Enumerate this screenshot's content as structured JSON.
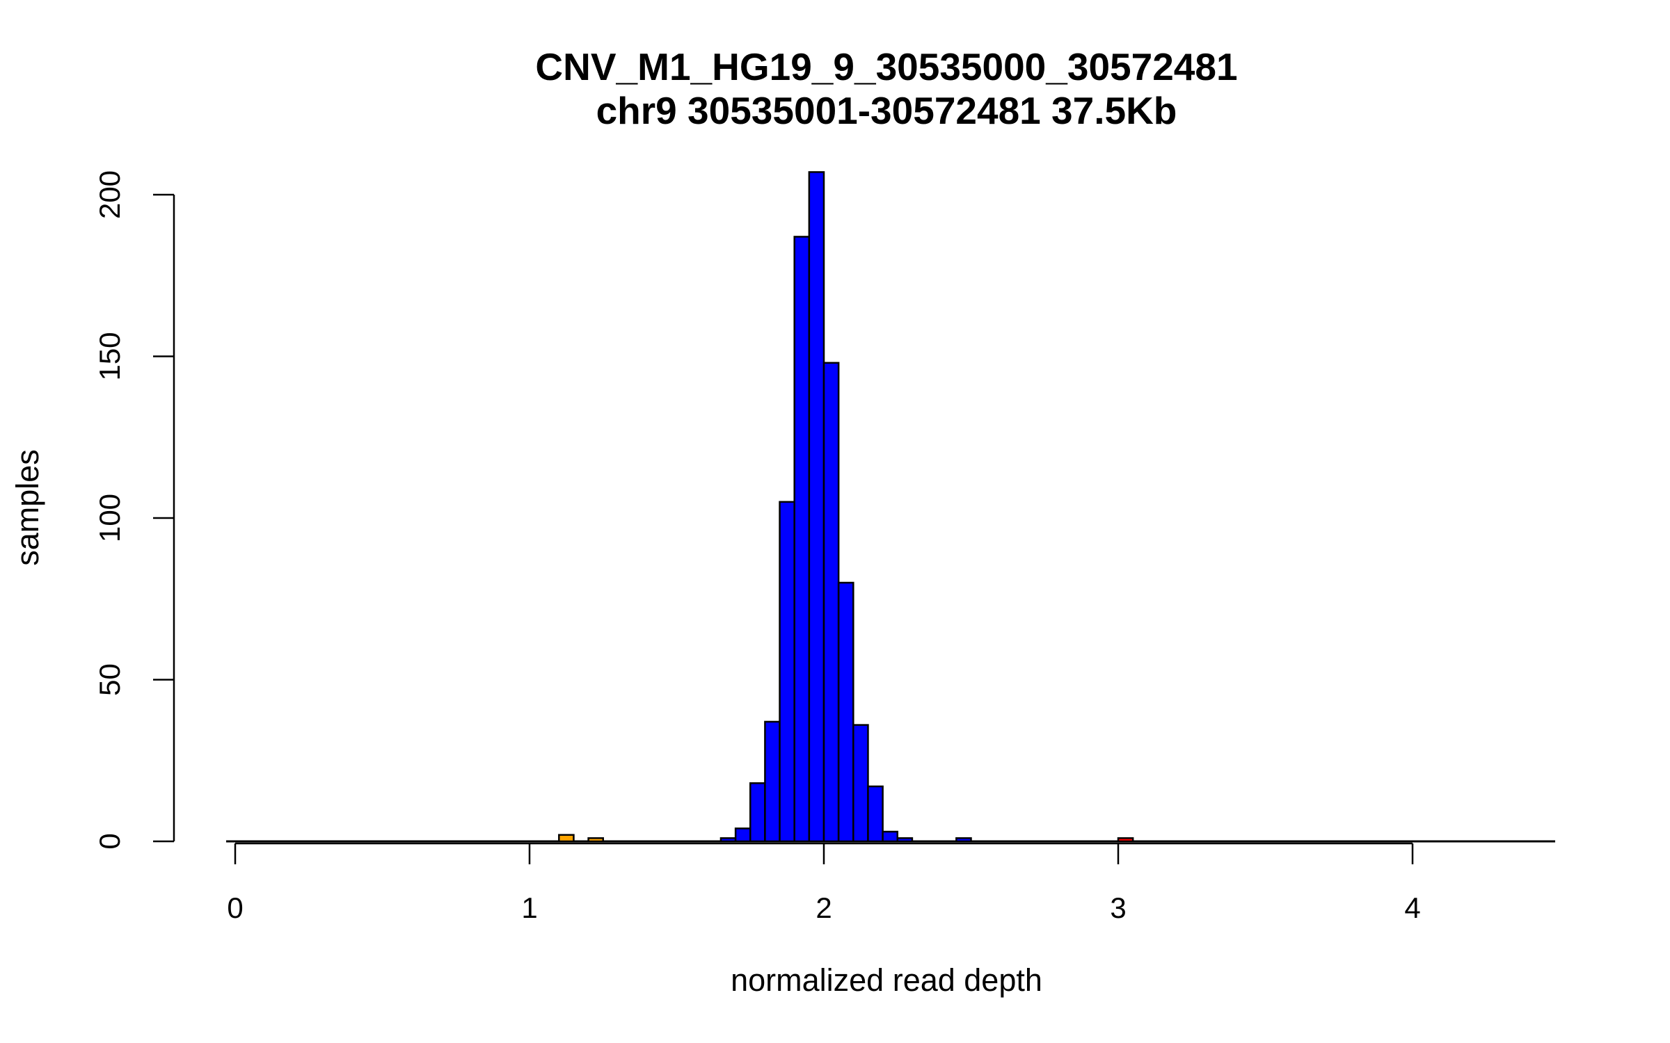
{
  "chart_data": {
    "type": "bar",
    "title": "CNV_M1_HG19_9_30535000_30572481",
    "subtitle": "chr9 30535001-30572481 37.5Kb",
    "xlabel": "normalized read depth",
    "ylabel": "samples",
    "xlim": [
      -0.05,
      4.5
    ],
    "ylim": [
      0,
      207
    ],
    "x_ticks": [
      "0",
      "1",
      "2",
      "3",
      "4"
    ],
    "y_ticks": [
      "0",
      "50",
      "100",
      "150",
      "200"
    ],
    "grid": false,
    "legend": "none",
    "bin_width": 0.05,
    "colors": {
      "normal": "#0000ff",
      "loss": "#ffa500",
      "gain": "#ff0000",
      "outline": "#000000"
    },
    "bins": [
      {
        "x0": 1.1,
        "x1": 1.15,
        "value": 2,
        "class": "loss"
      },
      {
        "x0": 1.2,
        "x1": 1.25,
        "value": 1,
        "class": "loss"
      },
      {
        "x0": 1.65,
        "x1": 1.7,
        "value": 1,
        "class": "normal"
      },
      {
        "x0": 1.7,
        "x1": 1.75,
        "value": 4,
        "class": "normal"
      },
      {
        "x0": 1.75,
        "x1": 1.8,
        "value": 18,
        "class": "normal"
      },
      {
        "x0": 1.8,
        "x1": 1.85,
        "value": 37,
        "class": "normal"
      },
      {
        "x0": 1.85,
        "x1": 1.9,
        "value": 105,
        "class": "normal"
      },
      {
        "x0": 1.9,
        "x1": 1.95,
        "value": 187,
        "class": "normal"
      },
      {
        "x0": 1.95,
        "x1": 2.0,
        "value": 207,
        "class": "normal"
      },
      {
        "x0": 2.0,
        "x1": 2.05,
        "value": 148,
        "class": "normal"
      },
      {
        "x0": 2.05,
        "x1": 2.1,
        "value": 80,
        "class": "normal"
      },
      {
        "x0": 2.1,
        "x1": 2.15,
        "value": 36,
        "class": "normal"
      },
      {
        "x0": 2.15,
        "x1": 2.2,
        "value": 17,
        "class": "normal"
      },
      {
        "x0": 2.2,
        "x1": 2.25,
        "value": 3,
        "class": "normal"
      },
      {
        "x0": 2.25,
        "x1": 2.3,
        "value": 1,
        "class": "normal"
      },
      {
        "x0": 2.45,
        "x1": 2.5,
        "value": 1,
        "class": "normal"
      },
      {
        "x0": 3.0,
        "x1": 3.05,
        "value": 1,
        "class": "gain"
      }
    ]
  }
}
